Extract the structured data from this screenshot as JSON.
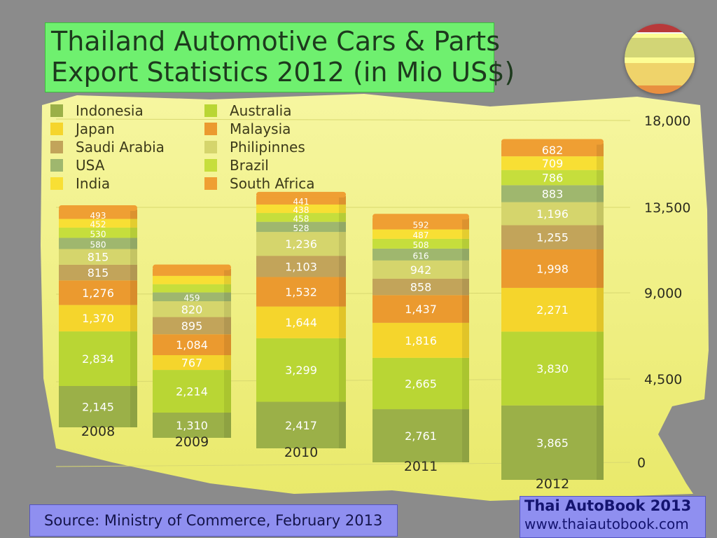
{
  "title": {
    "line1": "Thailand Automotive Cars & Parts",
    "line2": "Export Statistics 2012 (in Mio US$)"
  },
  "source": "Source: Ministry of Commerce, February 2013",
  "brand": {
    "title": "Thai AutoBook 2013",
    "url": "www.thaiautobook.com"
  },
  "colors": {
    "background": "#8b8b8b",
    "highlight": "#fbfb86",
    "title_box": "#6ff06f",
    "source_box": "#8f8ff0"
  },
  "chart_data": {
    "type": "bar",
    "stacked": true,
    "categories": [
      "2008",
      "2009",
      "2010",
      "2011",
      "2012"
    ],
    "ylim": [
      0,
      18000
    ],
    "y_ticks": [
      "0",
      "4,500",
      "9,000",
      "13,500",
      "18,000"
    ],
    "legend_position": "top-left",
    "series": [
      {
        "name": "Indonesia",
        "color": "#9bb048",
        "values": [
          2145,
          1310,
          2417,
          2761,
          3865
        ],
        "labels": [
          "2,145",
          "1,310",
          "2,417",
          "2,761",
          "3,865"
        ]
      },
      {
        "name": "Australia",
        "color": "#b9d634",
        "values": [
          2834,
          2214,
          3299,
          2665,
          3830
        ],
        "labels": [
          "2,834",
          "2,214",
          "3,299",
          "2,665",
          "3,830"
        ]
      },
      {
        "name": "Japan",
        "color": "#f5d52c",
        "values": [
          1370,
          767,
          1644,
          1816,
          2271
        ],
        "labels": [
          "1,370",
          "767",
          "1,644",
          "1,816",
          "2,271"
        ]
      },
      {
        "name": "Malaysia",
        "color": "#eb9a2f",
        "values": [
          1276,
          1084,
          1532,
          1437,
          1998
        ],
        "labels": [
          "1,276",
          "1,084",
          "1,532",
          "1,437",
          "1,998"
        ]
      },
      {
        "name": "Saudi Arabia",
        "color": "#c2a45a",
        "values": [
          815,
          895,
          1103,
          858,
          1255
        ],
        "labels": [
          "815",
          "895",
          "1,103",
          "858",
          "1,255"
        ]
      },
      {
        "name": "Philipinnes",
        "color": "#d5d56c",
        "values": [
          815,
          820,
          1236,
          942,
          1196
        ],
        "labels": [
          "815",
          "820",
          "1,236",
          "942",
          "1,196"
        ]
      },
      {
        "name": "USA",
        "color": "#9fb76e",
        "values": [
          580,
          459,
          528,
          616,
          883
        ],
        "labels": [
          "580",
          "459",
          "528",
          "616",
          "883"
        ]
      },
      {
        "name": "Brazil",
        "color": "#c6de3c",
        "values": [
          530,
          427,
          458,
          508,
          786
        ],
        "labels": [
          "530",
          "427",
          "458",
          "508",
          "786"
        ]
      },
      {
        "name": "India",
        "color": "#f8df34",
        "values": [
          452,
          429,
          438,
          487,
          709
        ],
        "labels": [
          "452",
          "429",
          "438",
          "487",
          "709"
        ]
      },
      {
        "name": "South Africa",
        "color": "#ef9f33",
        "values": [
          493,
          371,
          441,
          592,
          682
        ],
        "labels": [
          "493",
          "371",
          "441",
          "592",
          "682"
        ]
      }
    ]
  }
}
